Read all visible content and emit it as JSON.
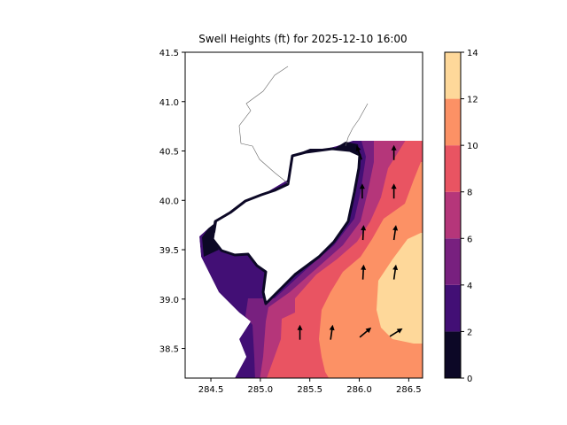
{
  "chart_data": {
    "type": "contour",
    "title": "Swell Heights (ft) for 2025-12-10 16:00",
    "xlabel": "",
    "ylabel": "",
    "xlim": [
      284.24,
      286.64
    ],
    "ylim": [
      38.2,
      41.5
    ],
    "x_ticks": [
      "284.5",
      "285.0",
      "285.5",
      "286.0",
      "286.5"
    ],
    "x_tick_values": [
      284.5,
      285.0,
      285.5,
      286.0,
      286.5
    ],
    "y_ticks": [
      "38.5",
      "39.0",
      "39.5",
      "40.0",
      "40.5",
      "41.0",
      "41.5"
    ],
    "y_tick_values": [
      38.5,
      39.0,
      39.5,
      40.0,
      40.5,
      41.0,
      41.5
    ],
    "grid": false,
    "colormap": "magma",
    "levels": [
      0,
      2,
      4,
      6,
      8,
      10,
      12,
      14
    ],
    "colorbar_ticks": [
      "0",
      "2",
      "4",
      "6",
      "8",
      "10",
      "12",
      "14"
    ],
    "band_colors": [
      "#0c0826",
      "#420f75",
      "#78207f",
      "#b5367a",
      "#e95462",
      "#fc9165",
      "#fed89a"
    ],
    "vectors": [
      {
        "lon": 286.0,
        "lat": 40.48,
        "direction_deg": -20
      },
      {
        "lon": 286.35,
        "lat": 40.48,
        "direction_deg": 0
      },
      {
        "lon": 286.03,
        "lat": 40.09,
        "direction_deg": 0
      },
      {
        "lon": 286.35,
        "lat": 40.09,
        "direction_deg": 0
      },
      {
        "lon": 286.04,
        "lat": 39.67,
        "direction_deg": 3
      },
      {
        "lon": 286.36,
        "lat": 39.67,
        "direction_deg": 8
      },
      {
        "lon": 286.04,
        "lat": 39.27,
        "direction_deg": 3
      },
      {
        "lon": 286.36,
        "lat": 39.27,
        "direction_deg": 8
      },
      {
        "lon": 285.4,
        "lat": 38.66,
        "direction_deg": 0
      },
      {
        "lon": 285.72,
        "lat": 38.66,
        "direction_deg": 8
      },
      {
        "lon": 286.06,
        "lat": 38.66,
        "direction_deg": 50
      },
      {
        "lon": 286.37,
        "lat": 38.66,
        "direction_deg": 58
      }
    ]
  }
}
